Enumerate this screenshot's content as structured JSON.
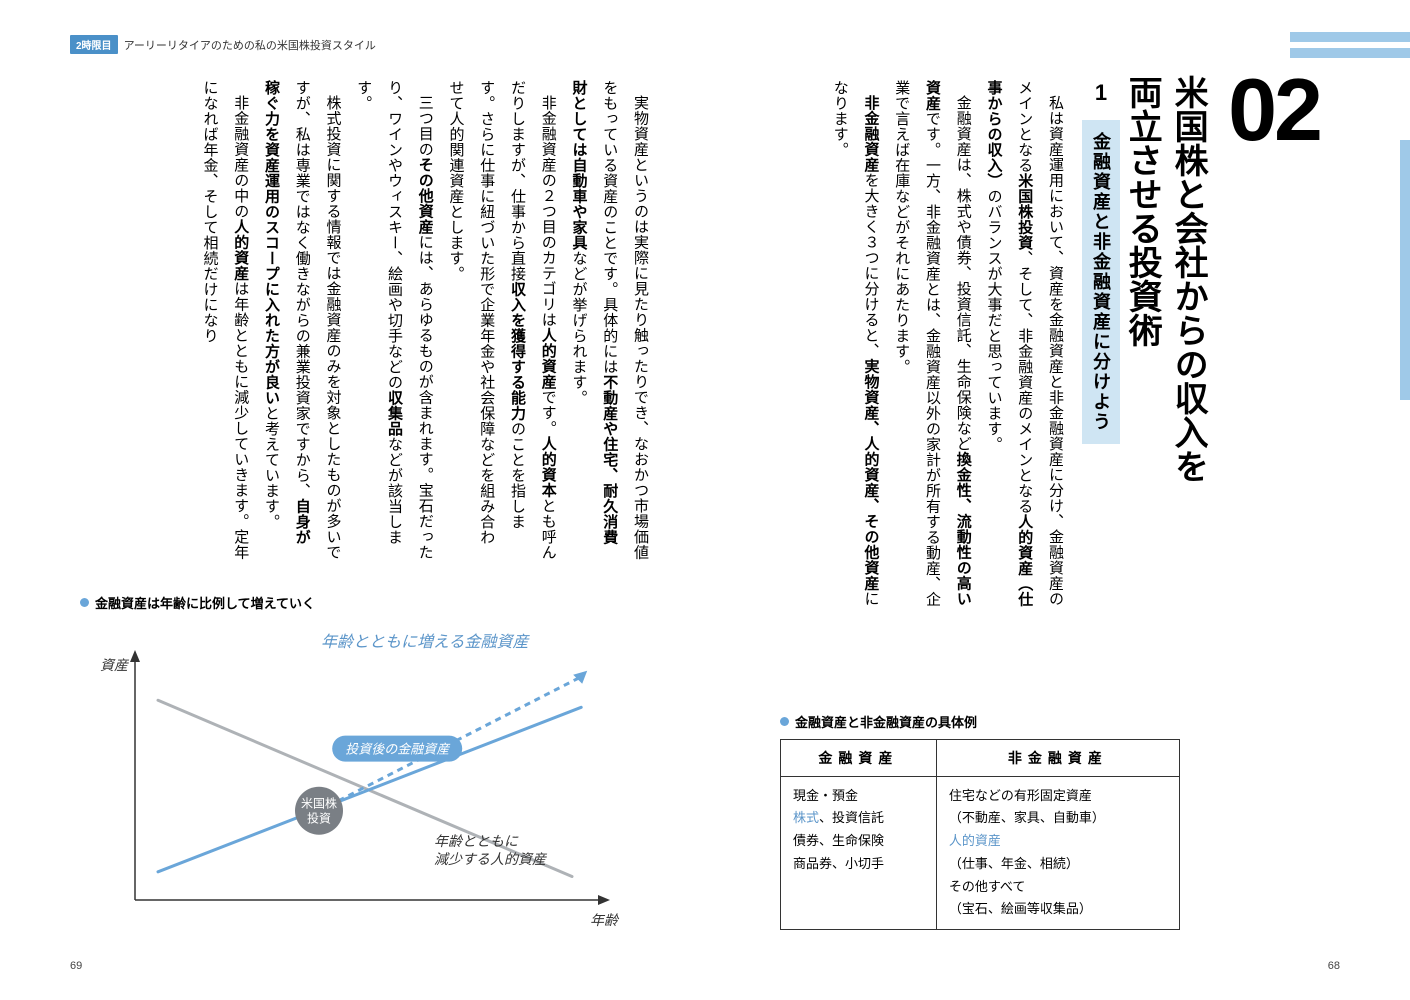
{
  "colors": {
    "accent": "#9fc9e8",
    "accent_dark": "#6aa6d9",
    "accent_light": "#cfe5f3",
    "text": "#222222",
    "grey_line": "#aeb2b6",
    "badge_bg": "#4a90c8",
    "hand_blue": "#5b95c9"
  },
  "running_head": {
    "badge": "2時限目",
    "text": "アーリーリタイアのための私の米国株投資スタイル"
  },
  "chapter": {
    "number": "02",
    "title_l1": "米国株と会社からの収入を",
    "title_l2": "両立させる投資術"
  },
  "section": {
    "number": "1",
    "title": "金融資産と非金融資産に分けよう"
  },
  "body_right_html": "<p>私は資産運用において、資産を金融資産と非金融資産に分け、金融資産のメインとなる<span class='bold'>米国株投資</span>、そして、非金融資産のメインとなる<span class='bold'>人的資産（仕事からの収入）</span>のバランスが大事だと思っています。</p><p>金融資産は、株式や債券、投資信託、生命保険など<span class='bold'>換金性、流動性の高い資産</span>です。一方、非金融資産とは、金融資産以外の家計が所有する動産、企業で言えば在庫などがそれにあたります。</p><p><span class='bold'>非金融資産</span>を大きく３つに分けると、<span class='bold'>実物資産、人的資産、その他資産</span>になります。</p>",
  "body_left_html": "<p>実物資産というのは実際に見たり触ったりでき、なおかつ市場価値をもっている資産のことです。具体的には<span class='bold'>不動産や住宅、耐久消費財としては自動車や家具</span>などが挙げられます。</p><p>非金融資産の２つ目のカテゴリは<span class='bold'>人的資産</span>です。<span class='bold'>人的資本</span>とも呼んだりしますが、仕事から直接<span class='bold'>収入を獲得する能力</span>のことを指します。さらに仕事に紐づいた形で企業年金や社会保障などを組み合わせて人的関連資産とします。</p><p>三つ目の<span class='bold'>その他資産</span>には、あらゆるものが含まれます。宝石だったり、ワインやウィスキー、絵画や切手などの<span class='bold'>収集品</span>などが該当します。</p><p>株式投資に関する情報では金融資産のみを対象としたものが多いですが、私は専業ではなく働きながらの兼業投資家ですから、<span class='bold'>自身が稼ぐ力を資産運用のスコープに入れた方が良い</span>と考えています。</p><p>非金融資産の中の<span class='bold'>人的資産</span>は年齢とともに減少していきます。定年になれば年金、そして相続だけになり</p>",
  "table": {
    "caption": "金融資産と非金融資産の具体例",
    "header_left": "金融資産",
    "header_right": "非金融資産",
    "left_rows": [
      "現金・預金",
      "株式、投資信託",
      "債券、生命保険",
      "商品券、小切手"
    ],
    "right_rows": [
      "住宅などの有形固定資産\n（不動産、家具、自動車）",
      "人的資産\n（仕事、年金、相続）",
      "その他すべて\n（宝石、絵画等収集品）"
    ],
    "blue_items": [
      "株式",
      "人的資産"
    ]
  },
  "chart": {
    "caption": "金融資産は年齢に比例して増えていく",
    "annotation_top": "年齢とともに増える金融資産",
    "pill_label": "投資後の金融資産",
    "callout": "米国株\n投資",
    "line1_label": "年齢とともに\n減少する人的資産",
    "x_label": "年齢",
    "y_label": "資産",
    "style": {
      "type": "line",
      "xlim": [
        0,
        10
      ],
      "ylim": [
        0,
        10
      ],
      "line_human": {
        "start": [
          0.5,
          8.5
        ],
        "end": [
          9.5,
          1.0
        ],
        "color": "#aeb2b6",
        "width": 3
      },
      "line_fin": {
        "start": [
          0.5,
          1.2
        ],
        "end": [
          9.7,
          8.2
        ],
        "color": "#6aa6d9",
        "width": 3
      },
      "line_fin2": {
        "start": [
          4.0,
          3.8
        ],
        "end": [
          9.7,
          9.5
        ],
        "color": "#6aa6d9",
        "width": 3,
        "dash": "6 5"
      },
      "background": "#ffffff",
      "axis_color": "#333333",
      "label_fontsize": 14
    }
  },
  "page_left_num": "69",
  "page_right_num": "68"
}
